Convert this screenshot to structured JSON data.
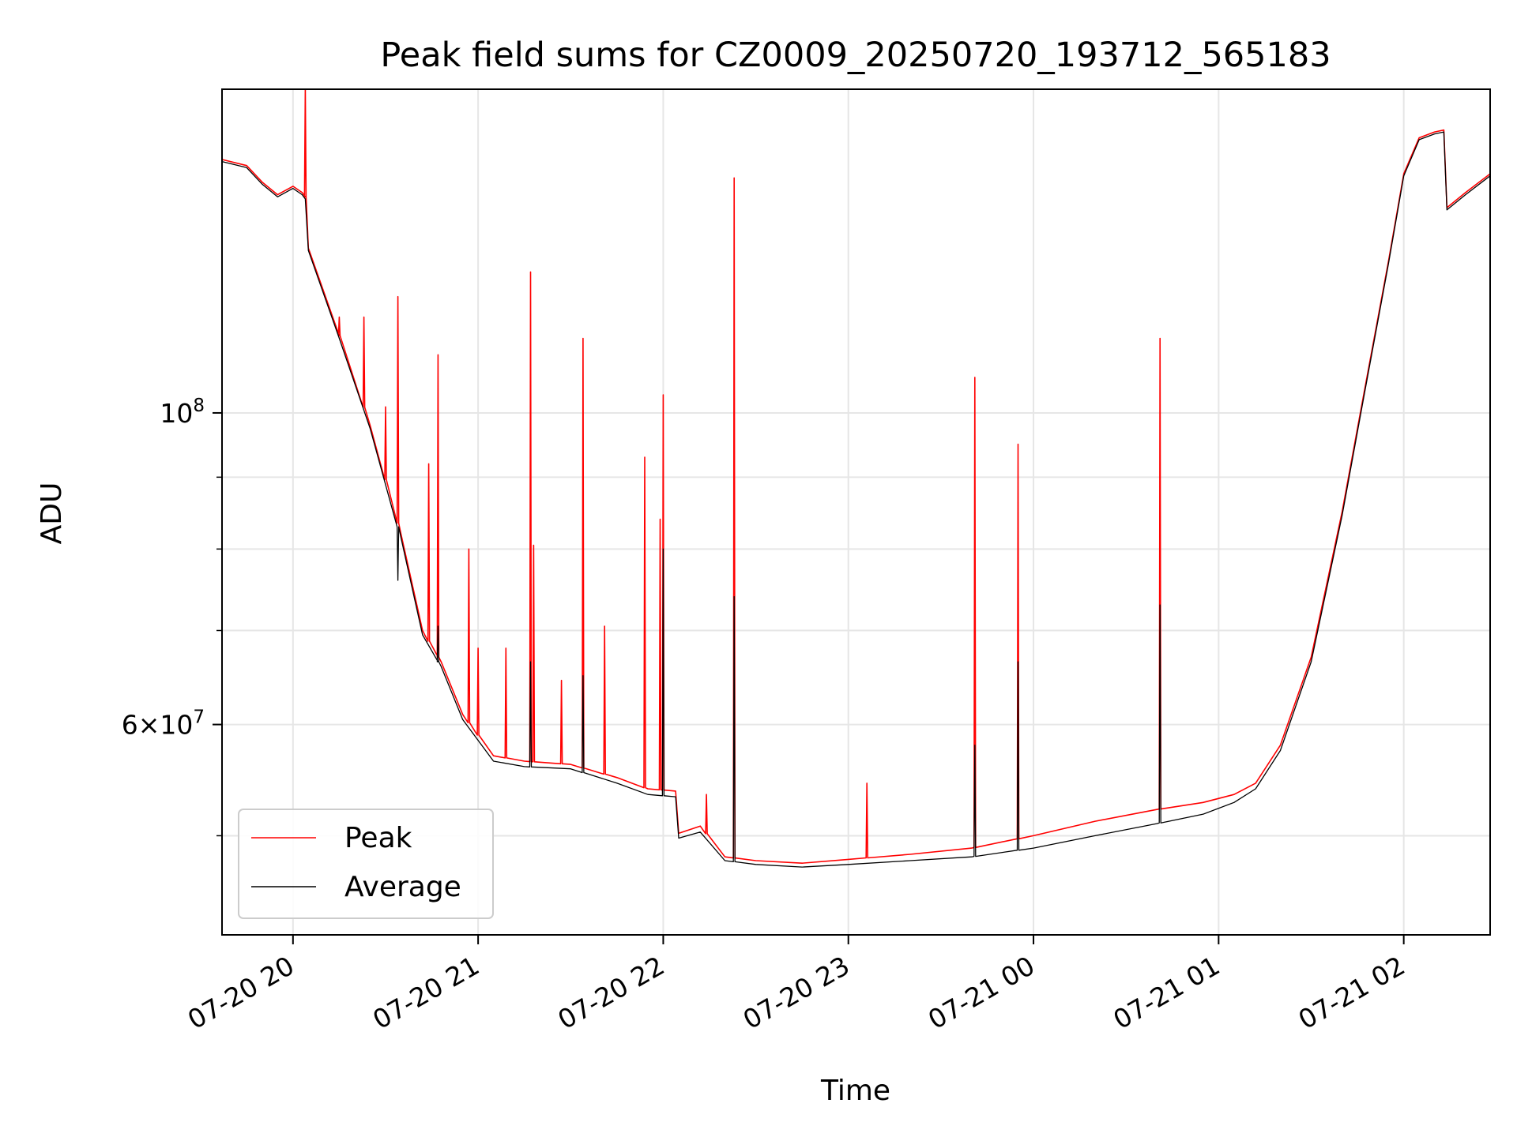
{
  "chart_data": {
    "type": "line",
    "title": "Peak field sums for CZ0009_20250720_193712_565183",
    "xlabel": "Time",
    "ylabel": "ADU",
    "x_type": "datetime",
    "xlim": [
      "2025-07-20 19:37",
      "2025-07-21 02:28"
    ],
    "ylim": [
      42500000,
      170000000
    ],
    "yscale": "log",
    "grid": true,
    "legend_position": "lower-left",
    "x_ticks": [
      {
        "label": "07-20 20",
        "value": "2025-07-20 20:00"
      },
      {
        "label": "07-20 21",
        "value": "2025-07-20 21:00"
      },
      {
        "label": "07-20 22",
        "value": "2025-07-20 22:00"
      },
      {
        "label": "07-20 23",
        "value": "2025-07-20 23:00"
      },
      {
        "label": "07-21 00",
        "value": "2025-07-21 00:00"
      },
      {
        "label": "07-21 01",
        "value": "2025-07-21 01:00"
      },
      {
        "label": "07-21 02",
        "value": "2025-07-21 02:00"
      }
    ],
    "y_ticks": [
      {
        "base": "10",
        "exp": "8",
        "value": 100000000
      },
      {
        "base": "6×10",
        "exp": "7",
        "value": 60000000
      }
    ],
    "y_minor_ticks": [
      50000000,
      70000000,
      80000000,
      90000000,
      200000000
    ],
    "series": [
      {
        "name": "Peak",
        "color": "#ff0000",
        "x": [
          "2025-07-20 19:37",
          "2025-07-20 19:45",
          "2025-07-20 19:50",
          "2025-07-20 19:55",
          "2025-07-20 20:00",
          "2025-07-20 20:03",
          "2025-07-20 20:04",
          "2025-07-20 20:05",
          "2025-07-20 20:15",
          "2025-07-20 20:25",
          "2025-07-20 20:35",
          "2025-07-20 20:42",
          "2025-07-20 20:47",
          "2025-07-20 20:48",
          "2025-07-20 20:55",
          "2025-07-20 21:05",
          "2025-07-20 21:15",
          "2025-07-20 21:30",
          "2025-07-20 21:45",
          "2025-07-20 21:55",
          "2025-07-20 22:04",
          "2025-07-20 22:05",
          "2025-07-20 22:12",
          "2025-07-20 22:20",
          "2025-07-20 22:30",
          "2025-07-20 22:45",
          "2025-07-20 23:00",
          "2025-07-20 23:20",
          "2025-07-20 23:40",
          "2025-07-21 00:00",
          "2025-07-21 00:20",
          "2025-07-21 00:40",
          "2025-07-21 00:55",
          "2025-07-21 01:05",
          "2025-07-21 01:12",
          "2025-07-21 01:20",
          "2025-07-21 01:30",
          "2025-07-21 01:40",
          "2025-07-21 01:47",
          "2025-07-21 01:55",
          "2025-07-21 02:00",
          "2025-07-21 02:05",
          "2025-07-21 02:10",
          "2025-07-21 02:13",
          "2025-07-21 02:14",
          "2025-07-21 02:20",
          "2025-07-21 02:28"
        ],
        "y": [
          151500000,
          150000000,
          146000000,
          143000000,
          145000000,
          143500000,
          142500000,
          131000000,
          113500000,
          98000000,
          82000000,
          70000000,
          67000000,
          66500000,
          61000000,
          57000000,
          56500000,
          56200000,
          55000000,
          54000000,
          53800000,
          50200000,
          50800000,
          48300000,
          48000000,
          47800000,
          48100000,
          48500000,
          49000000,
          50000000,
          51200000,
          52200000,
          52800000,
          53500000,
          54500000,
          58000000,
          67000000,
          85000000,
          103000000,
          128000000,
          148000000,
          157000000,
          158500000,
          159000000,
          140000000,
          143500000,
          148000000
        ],
        "spikes": [
          {
            "x": "2025-07-20 20:04",
            "y": 170000000
          },
          {
            "x": "2025-07-20 20:15",
            "y": 117000000
          },
          {
            "x": "2025-07-20 20:23",
            "y": 117000000
          },
          {
            "x": "2025-07-20 20:30",
            "y": 101000000
          },
          {
            "x": "2025-07-20 20:34",
            "y": 121000000
          },
          {
            "x": "2025-07-20 20:44",
            "y": 92000000
          },
          {
            "x": "2025-07-20 20:47",
            "y": 110000000
          },
          {
            "x": "2025-07-20 20:57",
            "y": 80000000
          },
          {
            "x": "2025-07-20 21:00",
            "y": 68000000
          },
          {
            "x": "2025-07-20 21:09",
            "y": 68000000
          },
          {
            "x": "2025-07-20 21:17",
            "y": 126000000
          },
          {
            "x": "2025-07-20 21:18",
            "y": 80500000
          },
          {
            "x": "2025-07-20 21:27",
            "y": 64500000
          },
          {
            "x": "2025-07-20 21:34",
            "y": 113000000
          },
          {
            "x": "2025-07-20 21:41",
            "y": 70500000
          },
          {
            "x": "2025-07-20 21:54",
            "y": 93000000
          },
          {
            "x": "2025-07-20 21:59",
            "y": 84000000
          },
          {
            "x": "2025-07-20 22:00",
            "y": 103000000
          },
          {
            "x": "2025-07-20 22:14",
            "y": 53500000
          },
          {
            "x": "2025-07-20 22:23",
            "y": 147000000
          },
          {
            "x": "2025-07-20 23:06",
            "y": 54500000
          },
          {
            "x": "2025-07-20 23:41",
            "y": 106000000
          },
          {
            "x": "2025-07-20 23:55",
            "y": 95000000
          },
          {
            "x": "2025-07-21 00:41",
            "y": 113000000
          }
        ]
      },
      {
        "name": "Average",
        "color": "#000000",
        "x": [
          "2025-07-20 19:37",
          "2025-07-20 19:45",
          "2025-07-20 19:50",
          "2025-07-20 19:55",
          "2025-07-20 20:00",
          "2025-07-20 20:03",
          "2025-07-20 20:04",
          "2025-07-20 20:05",
          "2025-07-20 20:15",
          "2025-07-20 20:25",
          "2025-07-20 20:35",
          "2025-07-20 20:42",
          "2025-07-20 20:47",
          "2025-07-20 20:48",
          "2025-07-20 20:55",
          "2025-07-20 21:05",
          "2025-07-20 21:15",
          "2025-07-20 21:30",
          "2025-07-20 21:45",
          "2025-07-20 21:55",
          "2025-07-20 22:04",
          "2025-07-20 22:05",
          "2025-07-20 22:12",
          "2025-07-20 22:20",
          "2025-07-20 22:30",
          "2025-07-20 22:45",
          "2025-07-20 23:00",
          "2025-07-20 23:20",
          "2025-07-20 23:40",
          "2025-07-21 00:00",
          "2025-07-21 00:20",
          "2025-07-21 00:40",
          "2025-07-21 00:55",
          "2025-07-21 01:05",
          "2025-07-21 01:12",
          "2025-07-21 01:20",
          "2025-07-21 01:30",
          "2025-07-21 01:40",
          "2025-07-21 01:47",
          "2025-07-21 01:55",
          "2025-07-21 02:00",
          "2025-07-21 02:05",
          "2025-07-21 02:10",
          "2025-07-21 02:13",
          "2025-07-21 02:14",
          "2025-07-21 02:20",
          "2025-07-21 02:28"
        ],
        "y": [
          151000000,
          149500000,
          145500000,
          142500000,
          144500000,
          143000000,
          142000000,
          130500000,
          113000000,
          97500000,
          81500000,
          69500000,
          66500000,
          66000000,
          60500000,
          56500000,
          56000000,
          55800000,
          54500000,
          53500000,
          53300000,
          49800000,
          50300000,
          48000000,
          47700000,
          47500000,
          47700000,
          48000000,
          48300000,
          49000000,
          50000000,
          51000000,
          51800000,
          52800000,
          54000000,
          57500000,
          66500000,
          84500000,
          102500000,
          127500000,
          147500000,
          156500000,
          158000000,
          158500000,
          139500000,
          143000000,
          147500000
        ],
        "spikes": [
          {
            "x": "2025-07-20 20:34",
            "y": 76000000
          },
          {
            "x": "2025-07-20 20:47",
            "y": 70500000
          },
          {
            "x": "2025-07-20 21:17",
            "y": 66500000
          },
          {
            "x": "2025-07-20 21:34",
            "y": 65000000
          },
          {
            "x": "2025-07-20 22:00",
            "y": 80000000
          },
          {
            "x": "2025-07-20 22:23",
            "y": 74000000
          },
          {
            "x": "2025-07-20 23:41",
            "y": 58000000
          },
          {
            "x": "2025-07-20 23:55",
            "y": 66500000
          },
          {
            "x": "2025-07-21 00:41",
            "y": 73000000
          }
        ]
      }
    ]
  }
}
